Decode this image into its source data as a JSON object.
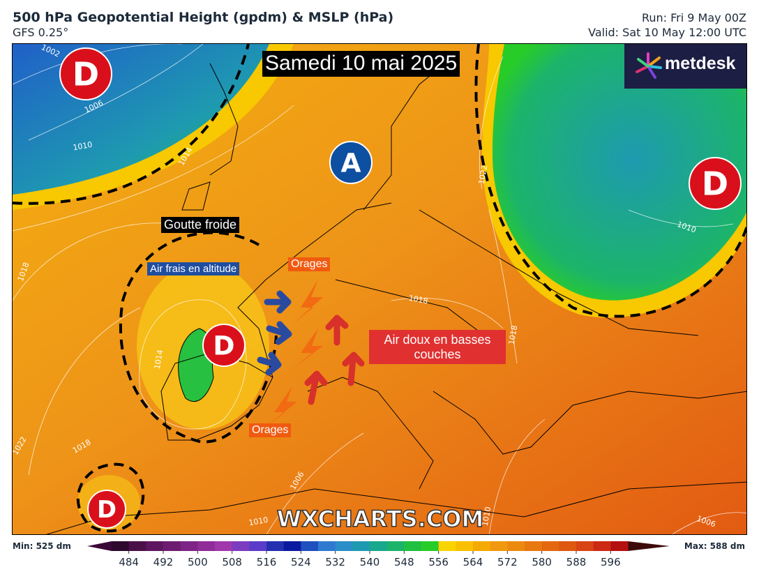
{
  "header": {
    "title": "500 hPa Geopotential Height (gpdm) & MSLP (hPa)",
    "model": "GFS 0.25°",
    "run": "Run: Fri 9 May 00Z",
    "valid": "Valid: Sat 10 May 12:00 UTC"
  },
  "map": {
    "date_banner": "Samedi 10 mai 2025",
    "logo": "metdesk",
    "watermark": "WXCHARTS.COM",
    "pressure_centers": [
      {
        "label": "D",
        "color": "#d9101b"
      },
      {
        "label": "A",
        "color": "#0d4fa0"
      },
      {
        "label": "D",
        "color": "#d9101b"
      },
      {
        "label": "D",
        "color": "#d9101b"
      },
      {
        "label": "D",
        "color": "#d9101b"
      }
    ],
    "annotations": [
      {
        "text": "Goutte froide",
        "color": "#000000"
      },
      {
        "text": "Air frais en altitude",
        "color": "#1f4ea0"
      },
      {
        "text": "Orages",
        "color": "#f05a10"
      },
      {
        "text": "Air doux en basses couches",
        "color": "#e03030"
      },
      {
        "text": "Orages",
        "color": "#f05a10"
      }
    ],
    "isobar_labels": [
      "1002",
      "1006",
      "1010",
      "1014",
      "1018",
      "1014",
      "1022",
      "1018",
      "1006",
      "1010",
      "1018",
      "1018",
      "1022",
      "1010",
      "1010",
      "1006"
    ]
  },
  "colorbar": {
    "min_label": "Min: 525 dm",
    "max_label": "Max: 588 dm",
    "lim": [
      480,
      600
    ],
    "ticks": [
      484,
      492,
      500,
      508,
      516,
      524,
      532,
      540,
      548,
      556,
      564,
      572,
      580,
      588,
      596
    ],
    "under_color": "#3a0838",
    "over_color": "#3c0a08",
    "colors": [
      "#2d0a2d",
      "#4a1048",
      "#5e1660",
      "#6e1c72",
      "#7e2486",
      "#8f2c98",
      "#a038ab",
      "#7c3cc0",
      "#5a3cc8",
      "#2430b0",
      "#0a1aa0",
      "#1f50c0",
      "#2f7ad0",
      "#2a8ec8",
      "#1e9ab0",
      "#18a88e",
      "#1cb46a",
      "#20c040",
      "#28cc28",
      "#f8d400",
      "#f8c000",
      "#f4aa00",
      "#f09810",
      "#ec8a10",
      "#e87810",
      "#e46810",
      "#de5810",
      "#d84414",
      "#cc2a14",
      "#b41010"
    ]
  }
}
